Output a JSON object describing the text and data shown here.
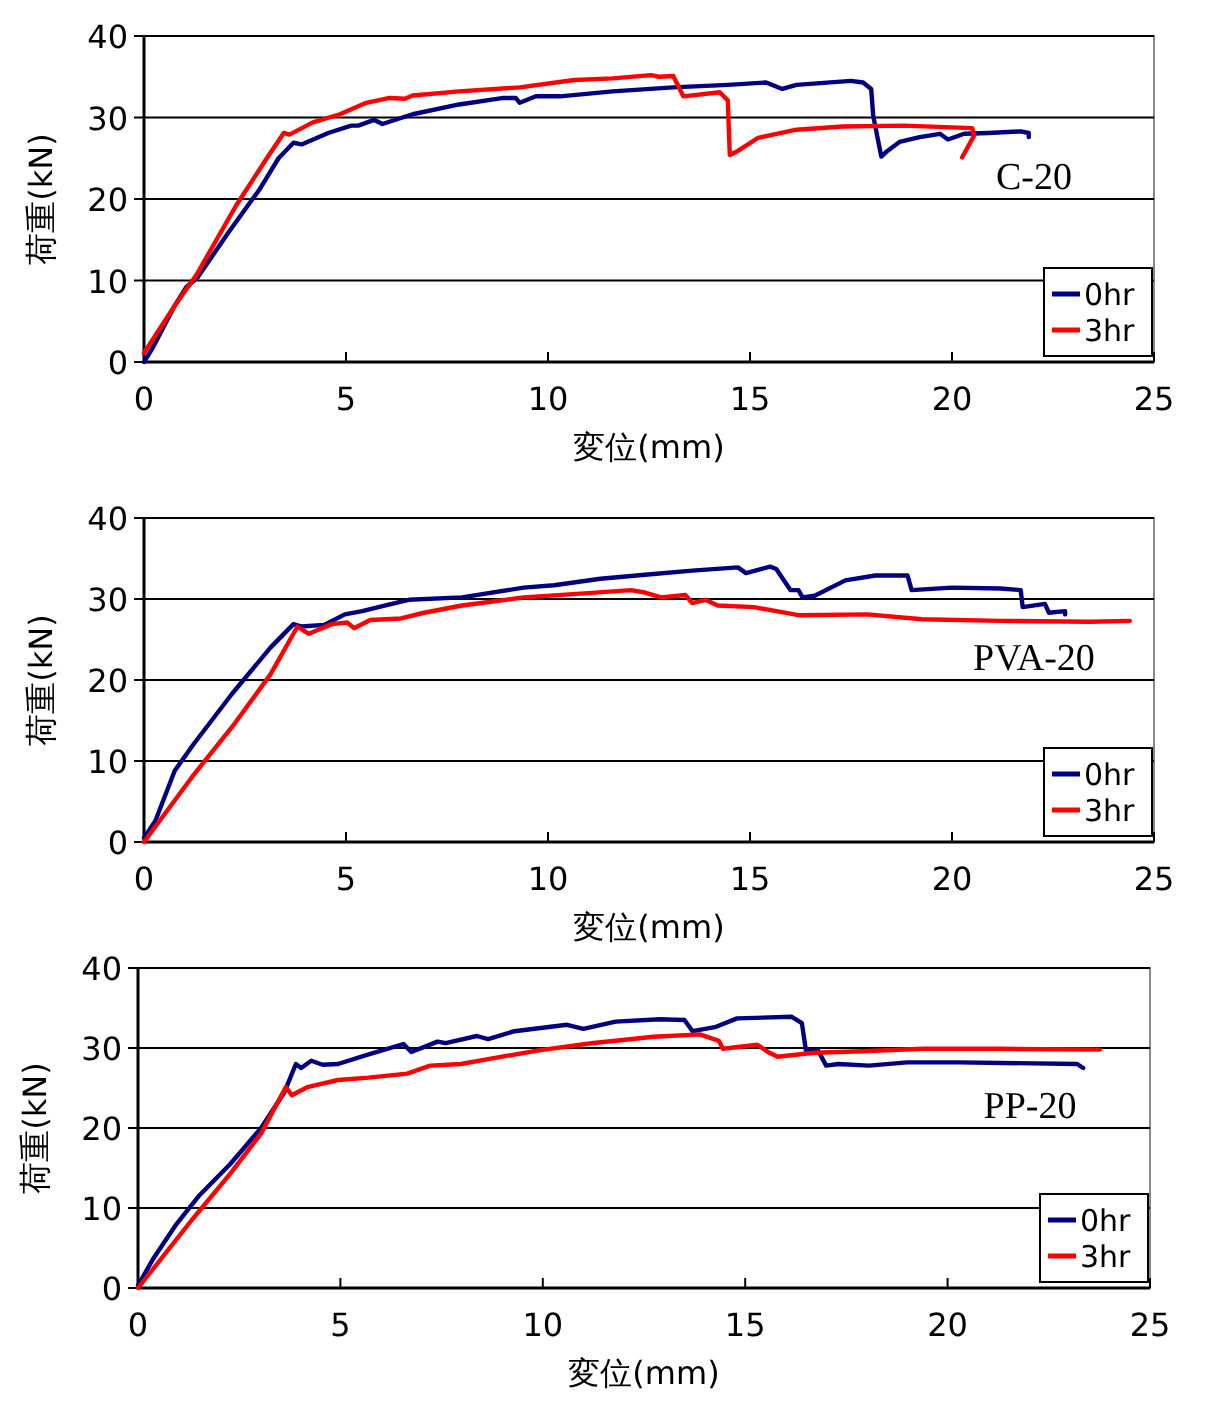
{
  "chart_data": [
    {
      "type": "line",
      "xlabel": "変位(mm)",
      "ylabel": "荷重(kN)",
      "xlim": [
        0,
        25
      ],
      "ylim": [
        0,
        40
      ],
      "xticks": [
        0,
        5,
        10,
        15,
        20,
        25
      ],
      "yticks": [
        0,
        10,
        20,
        30,
        40
      ],
      "grid": "y",
      "legend": "bottom right",
      "annotations": [
        "C-20"
      ],
      "series": [
        {
          "name": "0hr",
          "color": "#000080",
          "x": [
            0,
            0.2,
            0.76,
            1.05,
            1.33,
            2.09,
            2.85,
            3.33,
            3.7,
            3.9,
            4.56,
            5.13,
            5.3,
            5.7,
            5.9,
            6.65,
            7.8,
            8.9,
            9.2,
            9.3,
            9.7,
            10.3,
            11.6,
            13.1,
            14.45,
            15.4,
            15.8,
            16.15,
            17.5,
            17.8,
            18.0,
            18.05,
            18.25,
            18.4,
            18.7,
            19.2,
            19.7,
            19.9,
            20.3,
            20.9,
            21.7,
            21.9,
            21.9
          ],
          "values": [
            0,
            1.6,
            6.9,
            9.2,
            10.4,
            15.9,
            21.1,
            25,
            26.9,
            26.7,
            28.1,
            29.0,
            29.0,
            29.7,
            29.2,
            30.4,
            31.6,
            32.4,
            32.4,
            31.8,
            32.6,
            32.6,
            33.2,
            33.7,
            34.0,
            34.3,
            33.5,
            34.0,
            34.5,
            34.3,
            33.5,
            30.2,
            25.2,
            25.9,
            27.0,
            27.6,
            28.0,
            27.3,
            28.0,
            28.1,
            28.3,
            28.1,
            27.6
          ]
        },
        {
          "name": "3hr",
          "color": "#ff0000",
          "x": [
            0,
            0.76,
            1.3,
            2.28,
            3.04,
            3.46,
            3.6,
            4.18,
            4.85,
            5.5,
            6.08,
            6.46,
            6.65,
            7.8,
            9.3,
            10.65,
            11.6,
            12.55,
            12.75,
            13.1,
            13.35,
            14.25,
            14.45,
            14.5,
            14.7,
            15.2,
            16.15,
            17.3,
            18.8,
            20.5,
            20.55,
            20.25
          ],
          "values": [
            1.1,
            6.9,
            10.7,
            19.2,
            25,
            28.1,
            27.9,
            29.4,
            30.4,
            31.8,
            32.4,
            32.3,
            32.7,
            33.2,
            33.7,
            34.6,
            34.8,
            35.2,
            35.0,
            35.1,
            32.6,
            33.1,
            32.1,
            25.4,
            25.9,
            27.5,
            28.5,
            28.9,
            29.0,
            28.7,
            27.8,
            25.1
          ]
        }
      ]
    },
    {
      "type": "line",
      "xlabel": "変位(mm)",
      "ylabel": "荷重(kN)",
      "xlim": [
        0,
        25
      ],
      "ylim": [
        0,
        40
      ],
      "xticks": [
        0,
        5,
        10,
        15,
        20,
        25
      ],
      "yticks": [
        0,
        10,
        20,
        30,
        40
      ],
      "grid": "y",
      "legend": "bottom right",
      "annotations": [
        "PVA-20"
      ],
      "series": [
        {
          "name": "0hr",
          "color": "#000080",
          "x": [
            0,
            0.28,
            0.76,
            1.23,
            2.18,
            3.13,
            3.7,
            3.9,
            4.46,
            4.97,
            5.4,
            5.98,
            6.55,
            7.87,
            9.4,
            10.15,
            11.3,
            12.4,
            13.57,
            14.7,
            14.9,
            15.5,
            15.65,
            16.0,
            16.2,
            16.3,
            16.6,
            17.36,
            18.1,
            18.9,
            19.0,
            20.0,
            21.2,
            21.7,
            21.75,
            22.3,
            22.4,
            22.8,
            22.8
          ],
          "values": [
            0.5,
            2.6,
            8.8,
            12.1,
            18.3,
            24.0,
            26.9,
            26.6,
            26.8,
            28.1,
            28.5,
            29.2,
            29.9,
            30.2,
            31.4,
            31.7,
            32.5,
            33.0,
            33.5,
            33.9,
            33.2,
            34.0,
            33.7,
            31.1,
            31.1,
            30.2,
            30.4,
            32.3,
            32.9,
            32.9,
            31.1,
            31.4,
            31.3,
            31.1,
            29.0,
            29.4,
            28.3,
            28.5,
            28.1
          ]
        },
        {
          "name": "3hr",
          "color": "#ff0000",
          "x": [
            0,
            1.23,
            2.18,
            3.13,
            3.8,
            4.08,
            4.65,
            5.03,
            5.2,
            5.6,
            6.36,
            6.93,
            7.87,
            9.4,
            10.9,
            12.05,
            12.4,
            12.8,
            13.4,
            13.57,
            13.9,
            14.2,
            15.1,
            16.2,
            17.9,
            19.26,
            21.2,
            23.4,
            24.4
          ],
          "values": [
            0,
            8.3,
            14.2,
            20.7,
            26.6,
            25.7,
            26.9,
            27.1,
            26.4,
            27.4,
            27.6,
            28.3,
            29.2,
            30.2,
            30.7,
            31.1,
            30.8,
            30.2,
            30.5,
            29.5,
            29.9,
            29.2,
            29.0,
            28.0,
            28.1,
            27.5,
            27.3,
            27.2,
            27.3
          ]
        }
      ]
    },
    {
      "type": "line",
      "xlabel": "変位(mm)",
      "ylabel": "荷重(kN)",
      "xlim": [
        0,
        25
      ],
      "ylim": [
        0,
        40
      ],
      "xticks": [
        0,
        5,
        10,
        15,
        20,
        25
      ],
      "yticks": [
        0,
        10,
        20,
        30,
        40
      ],
      "grid": "y",
      "legend": "bottom right",
      "annotations": [
        "PP-20"
      ],
      "series": [
        {
          "name": "0hr",
          "color": "#000080",
          "x": [
            0,
            0.38,
            0.95,
            1.52,
            2.28,
            3.04,
            3.61,
            3.9,
            4.03,
            4.28,
            4.56,
            4.94,
            5.7,
            6.56,
            6.75,
            7.4,
            7.6,
            8.37,
            8.65,
            9.3,
            10.6,
            11.0,
            11.8,
            12.9,
            13.5,
            13.7,
            14.25,
            14.8,
            16.15,
            16.4,
            16.5,
            16.8,
            17.0,
            17.3,
            18.06,
            19.0,
            20.3,
            23.2,
            23.35
          ],
          "values": [
            0.3,
            3.7,
            8.0,
            11.6,
            15.5,
            20.0,
            24.4,
            28.0,
            27.5,
            28.4,
            27.9,
            28.0,
            29.2,
            30.5,
            29.5,
            30.8,
            30.6,
            31.5,
            31.1,
            32.1,
            32.9,
            32.4,
            33.3,
            33.6,
            33.5,
            32.1,
            32.6,
            33.7,
            33.9,
            33.1,
            29.7,
            29.7,
            27.8,
            28.0,
            27.8,
            28.2,
            28.2,
            28.0,
            27.5
          ]
        },
        {
          "name": "3hr",
          "color": "#ff0000",
          "x": [
            0,
            1.33,
            2.28,
            3.04,
            3.65,
            3.8,
            4.18,
            4.94,
            5.7,
            6.65,
            7.22,
            7.98,
            8.75,
            9.9,
            11.2,
            12.74,
            13.88,
            14.35,
            14.45,
            15.3,
            15.6,
            15.8,
            16.7,
            17.87,
            19.4,
            21.3,
            23.76
          ],
          "values": [
            0,
            8.5,
            14.3,
            19.3,
            25.1,
            24.1,
            25.1,
            26.0,
            26.3,
            26.8,
            27.8,
            28.0,
            28.7,
            29.7,
            30.6,
            31.4,
            31.7,
            30.9,
            29.9,
            30.4,
            29.4,
            28.9,
            29.4,
            29.6,
            29.9,
            29.9,
            29.8
          ]
        }
      ]
    }
  ]
}
